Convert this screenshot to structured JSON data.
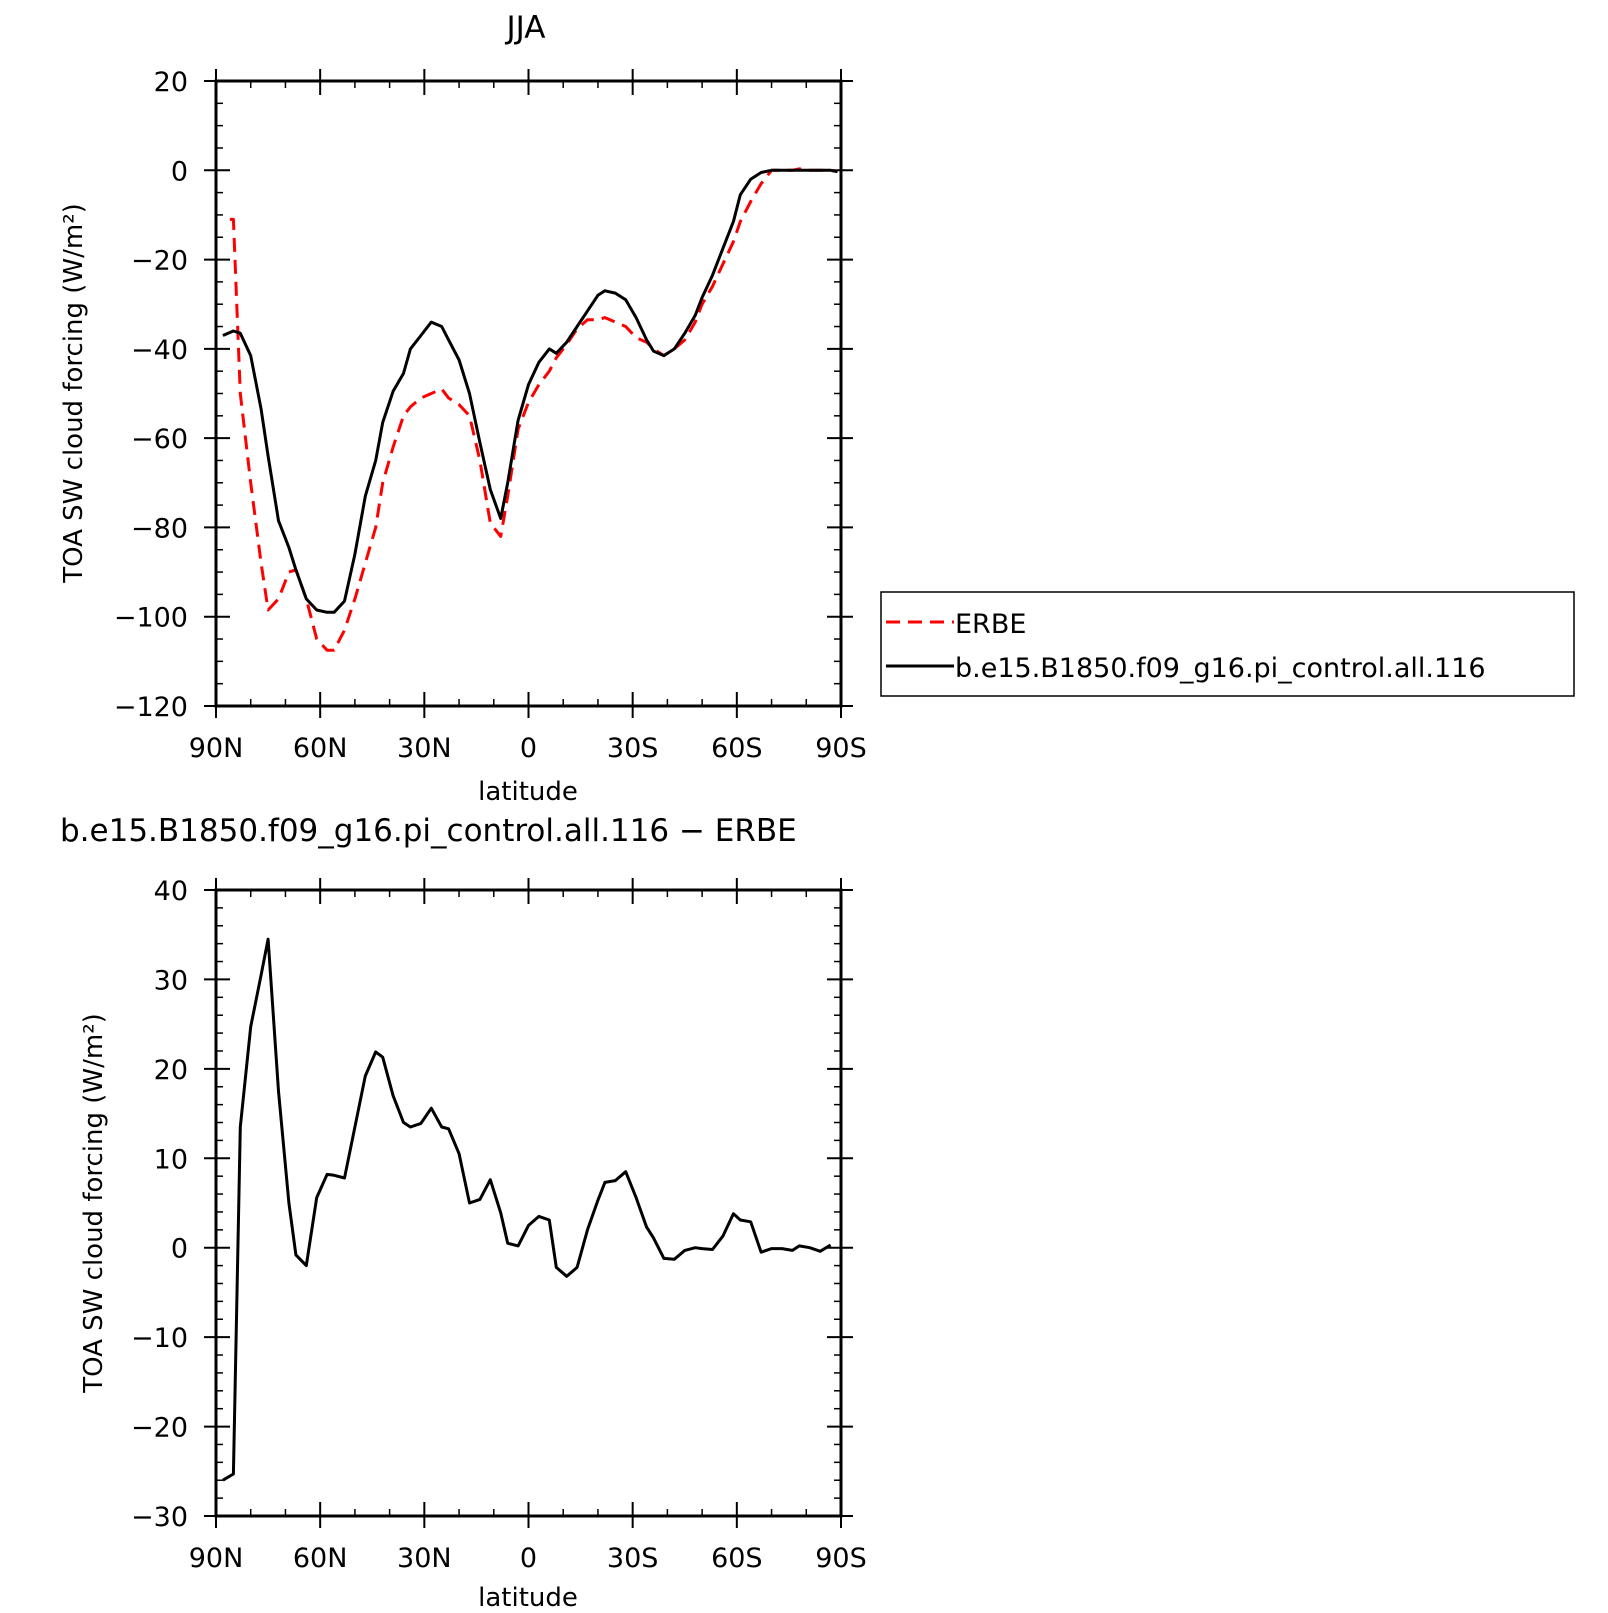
{
  "chart_data": [
    {
      "type": "line",
      "title": "JJA",
      "xlabel": "latitude",
      "ylabel": "TOA SW cloud forcing (W/m²)",
      "xlim": [
        90,
        -90
      ],
      "ylim": [
        -120,
        20
      ],
      "xtick_values": [
        90,
        60,
        30,
        0,
        -30,
        -60,
        -90
      ],
      "xtick_labels": [
        "90N",
        "60N",
        "30N",
        "0",
        "30S",
        "60S",
        "90S"
      ],
      "ytick_values": [
        20,
        0,
        -20,
        -40,
        -60,
        -80,
        -100,
        -120
      ],
      "ytick_labels": [
        "20",
        "0",
        "−20",
        "−40",
        "−60",
        "−80",
        "−100",
        "−120"
      ],
      "legend_position": "right",
      "series": [
        {
          "name": "ERBE",
          "color": "#ff0000",
          "style": "dashed",
          "points": [
            [
              86,
              -11
            ],
            [
              85,
              -11
            ],
            [
              83,
              -50
            ],
            [
              80,
              -70
            ],
            [
              77,
              -88
            ],
            [
              75,
              -98.5
            ],
            [
              72,
              -96
            ],
            [
              69,
              -90
            ],
            [
              67,
              -89.5
            ],
            [
              64,
              -96
            ],
            [
              61,
              -105
            ],
            [
              58,
              -107.5
            ],
            [
              56,
              -107.5
            ],
            [
              53,
              -103
            ],
            [
              50,
              -96
            ],
            [
              47,
              -88
            ],
            [
              44,
              -80
            ],
            [
              42,
              -70
            ],
            [
              39,
              -62
            ],
            [
              36,
              -55
            ],
            [
              34,
              -53
            ],
            [
              31,
              -51
            ],
            [
              28,
              -50
            ],
            [
              25,
              -49
            ],
            [
              23,
              -51
            ],
            [
              20,
              -52.5
            ],
            [
              17,
              -55
            ],
            [
              14,
              -65
            ],
            [
              11,
              -79
            ],
            [
              8,
              -82
            ],
            [
              6,
              -73
            ],
            [
              3,
              -58
            ],
            [
              0,
              -52
            ],
            [
              -3,
              -48
            ],
            [
              -6,
              -45
            ],
            [
              -8,
              -42
            ],
            [
              -11,
              -39
            ],
            [
              -14,
              -35.5
            ],
            [
              -17,
              -33.5
            ],
            [
              -20,
              -33.5
            ],
            [
              -22,
              -33
            ],
            [
              -25,
              -34
            ],
            [
              -28,
              -35
            ],
            [
              -31,
              -37.5
            ],
            [
              -34,
              -38.5
            ],
            [
              -36,
              -40
            ],
            [
              -39,
              -41.5
            ],
            [
              -42,
              -40
            ],
            [
              -45,
              -38
            ],
            [
              -48,
              -34
            ],
            [
              -50,
              -30
            ],
            [
              -53,
              -26
            ],
            [
              -56,
              -21
            ],
            [
              -59,
              -16
            ],
            [
              -61,
              -11.5
            ],
            [
              -64,
              -7
            ],
            [
              -67,
              -3
            ],
            [
              -70,
              0
            ],
            [
              -73,
              0
            ],
            [
              -76,
              0
            ],
            [
              -78,
              0.3
            ],
            [
              -81,
              0
            ],
            [
              -84,
              0
            ],
            [
              -87,
              0
            ],
            [
              -89,
              -0.3
            ]
          ]
        },
        {
          "name": "b.e15.B1850.f09_g16.pi_control.all.116",
          "color": "#000000",
          "style": "solid",
          "points": [
            [
              88,
              -37
            ],
            [
              85,
              -36
            ],
            [
              83,
              -36.5
            ],
            [
              80,
              -41.5
            ],
            [
              77,
              -53.5
            ],
            [
              75,
              -64
            ],
            [
              72,
              -78.5
            ],
            [
              69,
              -84.5
            ],
            [
              67,
              -89.5
            ],
            [
              64,
              -96
            ],
            [
              61,
              -98.5
            ],
            [
              58,
              -99
            ],
            [
              56,
              -99
            ],
            [
              53,
              -96.5
            ],
            [
              50,
              -86
            ],
            [
              47,
              -73
            ],
            [
              44,
              -65
            ],
            [
              42,
              -56.5
            ],
            [
              39,
              -49.5
            ],
            [
              36,
              -45.5
            ],
            [
              34,
              -40
            ],
            [
              31,
              -37
            ],
            [
              28,
              -34
            ],
            [
              25,
              -35
            ],
            [
              23,
              -38
            ],
            [
              20,
              -42.5
            ],
            [
              17,
              -50
            ],
            [
              14,
              -61
            ],
            [
              11,
              -71.5
            ],
            [
              8,
              -78
            ],
            [
              6,
              -70
            ],
            [
              3,
              -56
            ],
            [
              0,
              -48
            ],
            [
              -3,
              -43
            ],
            [
              -6,
              -40
            ],
            [
              -8,
              -41
            ],
            [
              -11,
              -38.5
            ],
            [
              -14,
              -35
            ],
            [
              -17,
              -31.5
            ],
            [
              -20,
              -28
            ],
            [
              -22,
              -27
            ],
            [
              -25,
              -27.5
            ],
            [
              -28,
              -29
            ],
            [
              -31,
              -33
            ],
            [
              -34,
              -38
            ],
            [
              -36,
              -40.5
            ],
            [
              -39,
              -41.5
            ],
            [
              -42,
              -40
            ],
            [
              -45,
              -36.5
            ],
            [
              -48,
              -32.5
            ],
            [
              -50,
              -28.5
            ],
            [
              -53,
              -23.5
            ],
            [
              -56,
              -17.5
            ],
            [
              -59,
              -11.5
            ],
            [
              -61,
              -5.5
            ],
            [
              -64,
              -2
            ],
            [
              -67,
              -0.5
            ],
            [
              -70,
              0
            ],
            [
              -73,
              0
            ],
            [
              -76,
              0
            ],
            [
              -78,
              0
            ],
            [
              -81,
              0
            ],
            [
              -84,
              0
            ],
            [
              -87,
              0
            ],
            [
              -89,
              -0.3
            ]
          ]
        }
      ]
    },
    {
      "type": "line",
      "title": "b.e15.B1850.f09_g16.pi_control.all.116 − ERBE",
      "xlabel": "latitude",
      "ylabel": "TOA SW cloud forcing (W/m²)",
      "xlim": [
        90,
        -90
      ],
      "ylim": [
        -30,
        40
      ],
      "xtick_values": [
        90,
        60,
        30,
        0,
        -30,
        -60,
        -90
      ],
      "xtick_labels": [
        "90N",
        "60N",
        "30N",
        "0",
        "30S",
        "60S",
        "90S"
      ],
      "ytick_values": [
        40,
        30,
        20,
        10,
        0,
        -10,
        -20,
        -30
      ],
      "ytick_labels": [
        "40",
        "30",
        "20",
        "10",
        "0",
        "−10",
        "−20",
        "−30"
      ],
      "series": [
        {
          "color": "#000000",
          "style": "solid",
          "points": [
            [
              88,
              -26
            ],
            [
              85,
              -25.3
            ],
            [
              83,
              13.5
            ],
            [
              80,
              24.7
            ],
            [
              77,
              30.5
            ],
            [
              75,
              34.5
            ],
            [
              72,
              17.5
            ],
            [
              69,
              5
            ],
            [
              67,
              -0.8
            ],
            [
              64,
              -2
            ],
            [
              61,
              5.6
            ],
            [
              58,
              8.2
            ],
            [
              56,
              8.1
            ],
            [
              53,
              7.8
            ],
            [
              50,
              13.5
            ],
            [
              47,
              19.2
            ],
            [
              44,
              21.9
            ],
            [
              42,
              21.3
            ],
            [
              39,
              17
            ],
            [
              36,
              14
            ],
            [
              34,
              13.5
            ],
            [
              31,
              13.9
            ],
            [
              28,
              15.6
            ],
            [
              25,
              13.5
            ],
            [
              23,
              13.3
            ],
            [
              20,
              10.5
            ],
            [
              17,
              5
            ],
            [
              14,
              5.4
            ],
            [
              11,
              7.6
            ],
            [
              8,
              3.9
            ],
            [
              6,
              0.5
            ],
            [
              3,
              0.2
            ],
            [
              0,
              2.5
            ],
            [
              -3,
              3.5
            ],
            [
              -6,
              3.1
            ],
            [
              -8,
              -2.2
            ],
            [
              -11,
              -3.2
            ],
            [
              -14,
              -2.2
            ],
            [
              -17,
              2
            ],
            [
              -20,
              5.3
            ],
            [
              -22,
              7.3
            ],
            [
              -25,
              7.5
            ],
            [
              -28,
              8.5
            ],
            [
              -31,
              5.6
            ],
            [
              -34,
              2.3
            ],
            [
              -36,
              1.1
            ],
            [
              -39,
              -1.2
            ],
            [
              -42,
              -1.3
            ],
            [
              -45,
              -0.3
            ],
            [
              -48,
              0
            ],
            [
              -50,
              -0.1
            ],
            [
              -53,
              -0.2
            ],
            [
              -56,
              1.3
            ],
            [
              -59,
              3.8
            ],
            [
              -61,
              3.1
            ],
            [
              -64,
              2.9
            ],
            [
              -67,
              -0.5
            ],
            [
              -70,
              -0.1
            ],
            [
              -73,
              -0.1
            ],
            [
              -76,
              -0.3
            ],
            [
              -78,
              0.2
            ],
            [
              -81,
              0
            ],
            [
              -84,
              -0.4
            ],
            [
              -87,
              0.3
            ]
          ]
        }
      ]
    }
  ]
}
